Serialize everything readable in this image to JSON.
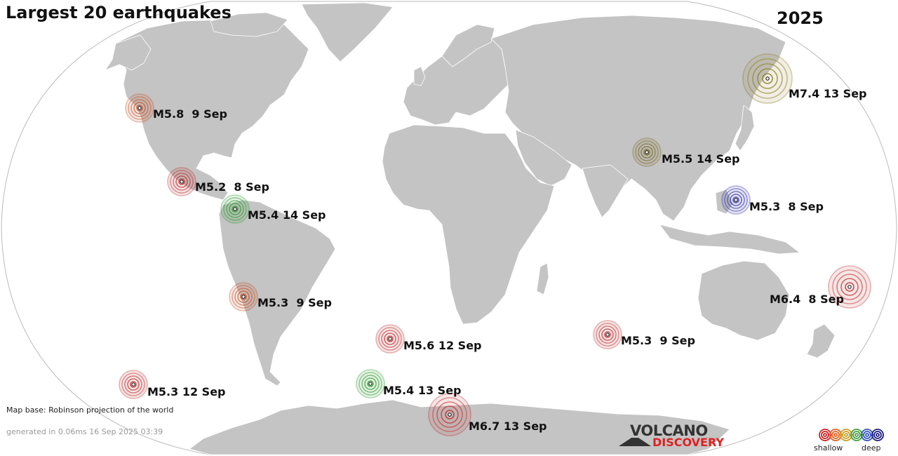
{
  "title": "Largest 20 earthquakes",
  "year": "2025",
  "colors": {
    "ocean_border": "#bbbbbb",
    "land": "#c4c4c4",
    "land_border": "#ffffff"
  },
  "quakes": [
    {
      "label": "M5.8  9 Sep",
      "color": "#c8542a"
    },
    {
      "label": "M5.2  8 Sep",
      "color": "#c03030"
    },
    {
      "label": "M5.4 14 Sep",
      "color": "#2f9a2f"
    },
    {
      "label": "M5.3  9 Sep",
      "color": "#c8542a"
    },
    {
      "label": "M5.3 12 Sep",
      "color": "#c03030"
    },
    {
      "label": "M5.6 12 Sep",
      "color": "#c03030"
    },
    {
      "label": "M5.4 13 Sep",
      "color": "#2f9a2f"
    },
    {
      "label": "M6.7 13 Sep",
      "color": "#c03030"
    },
    {
      "label": "M5.3  9 Sep",
      "color": "#c03030"
    },
    {
      "label": "M6.4  8 Sep",
      "color": "#c03030"
    },
    {
      "label": "M5.3  8 Sep",
      "color": "#2e2ea8"
    },
    {
      "label": "M5.5 14 Sep",
      "color": "#7a6a2a"
    },
    {
      "label": "M7.4 13 Sep",
      "color": "#8a7a20"
    }
  ],
  "footer": {
    "map_base": "Map base: Robinson projection of the world",
    "generated": "generated in 0.06ms 16 Sep 2025 03:39"
  },
  "logo": {
    "line1": "VOLCANO",
    "line2": "DISCOVERY"
  },
  "legend": {
    "shallow": "shallow",
    "deep": "deep",
    "colors": [
      "#d02020",
      "#e06020",
      "#c8a020",
      "#40a040",
      "#3050c0",
      "#202080"
    ]
  }
}
